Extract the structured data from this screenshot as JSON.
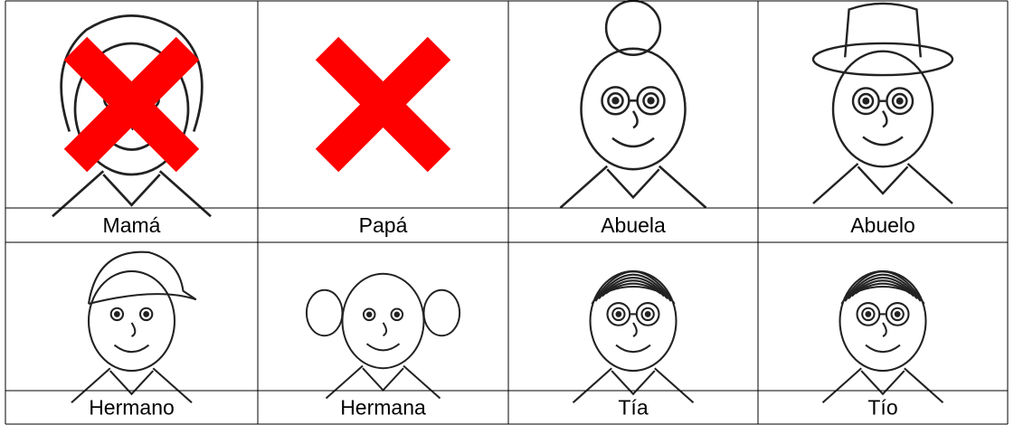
{
  "table": {
    "rows": [
      {
        "labels": [
          "Mamá",
          "Papá",
          "Abuela",
          "Abuelo"
        ]
      },
      {
        "labels": [
          "Hermano",
          "Hermana",
          "Tía",
          "Tío"
        ]
      }
    ]
  }
}
